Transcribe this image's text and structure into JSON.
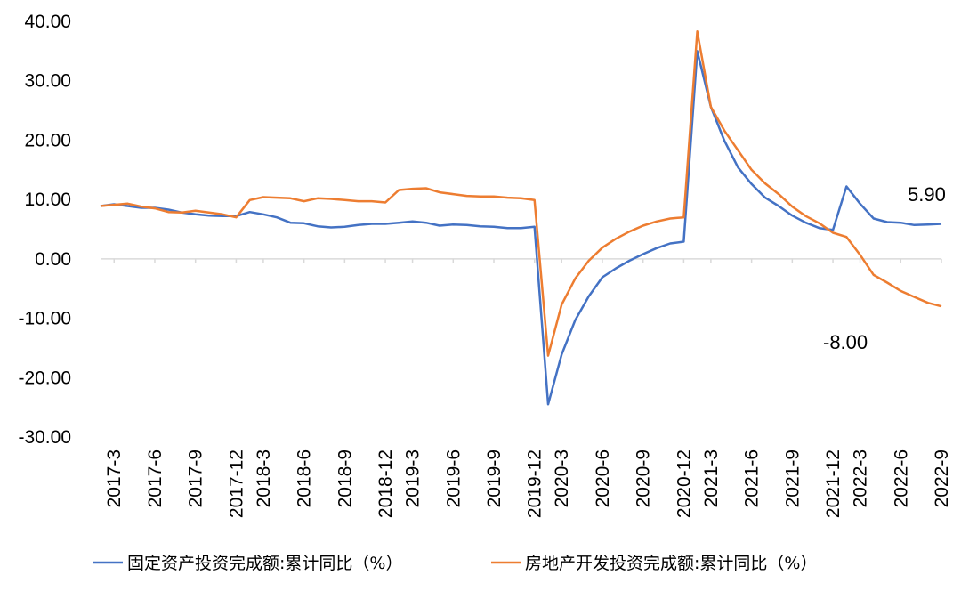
{
  "chart_data": {
    "type": "line",
    "title": "",
    "xlabel": "",
    "ylabel": "",
    "ylim": [
      -30,
      40
    ],
    "y_ticks": [
      "40.00",
      "30.00",
      "20.00",
      "10.00",
      "0.00",
      "-10.00",
      "-20.00",
      "-30.00"
    ],
    "y_tick_values": [
      40,
      30,
      20,
      10,
      0,
      -10,
      -20,
      -30
    ],
    "x_tick_labels": [
      "2017-3",
      "2017-6",
      "2017-9",
      "2017-12",
      "2018-3",
      "2018-6",
      "2018-9",
      "2018-12",
      "2019-3",
      "2019-6",
      "2019-9",
      "2019-12",
      "2020-3",
      "2020-6",
      "2020-9",
      "2020-12",
      "2021-3",
      "2021-6",
      "2021-9",
      "2021-12",
      "2022-3",
      "2022-6",
      "2022-9"
    ],
    "x": [
      "2017-2",
      "2017-3",
      "2017-4",
      "2017-5",
      "2017-6",
      "2017-7",
      "2017-8",
      "2017-9",
      "2017-10",
      "2017-11",
      "2017-12",
      "2018-2",
      "2018-3",
      "2018-4",
      "2018-5",
      "2018-6",
      "2018-7",
      "2018-8",
      "2018-9",
      "2018-10",
      "2018-11",
      "2018-12",
      "2019-2",
      "2019-3",
      "2019-4",
      "2019-5",
      "2019-6",
      "2019-7",
      "2019-8",
      "2019-9",
      "2019-10",
      "2019-11",
      "2019-12",
      "2020-2",
      "2020-3",
      "2020-4",
      "2020-5",
      "2020-6",
      "2020-7",
      "2020-8",
      "2020-9",
      "2020-10",
      "2020-11",
      "2020-12",
      "2021-2",
      "2021-3",
      "2021-4",
      "2021-5",
      "2021-6",
      "2021-7",
      "2021-8",
      "2021-9",
      "2021-10",
      "2021-11",
      "2021-12",
      "2022-2",
      "2022-3",
      "2022-4",
      "2022-5",
      "2022-6",
      "2022-7",
      "2022-8",
      "2022-9"
    ],
    "series": [
      {
        "name": "固定资产投资完成额:累计同比（%）",
        "color": "#4472C4",
        "values": [
          8.9,
          9.2,
          8.9,
          8.6,
          8.6,
          8.3,
          7.8,
          7.5,
          7.3,
          7.2,
          7.2,
          7.9,
          7.5,
          7.0,
          6.1,
          6.0,
          5.5,
          5.3,
          5.4,
          5.7,
          5.9,
          5.9,
          6.1,
          6.3,
          6.1,
          5.6,
          5.8,
          5.7,
          5.5,
          5.4,
          5.2,
          5.2,
          5.4,
          -24.5,
          -16.1,
          -10.3,
          -6.3,
          -3.1,
          -1.6,
          -0.3,
          0.8,
          1.8,
          2.6,
          2.9,
          35.0,
          25.6,
          19.9,
          15.4,
          12.6,
          10.3,
          8.9,
          7.3,
          6.1,
          5.2,
          4.9,
          12.2,
          9.3,
          6.8,
          6.2,
          6.1,
          5.7,
          5.8,
          5.9
        ]
      },
      {
        "name": "房地产开发投资完成额:累计同比（%）",
        "color": "#ED7D31",
        "values": [
          8.9,
          9.1,
          9.3,
          8.8,
          8.5,
          7.9,
          7.8,
          8.1,
          7.8,
          7.5,
          7.0,
          9.9,
          10.4,
          10.3,
          10.2,
          9.7,
          10.2,
          10.1,
          9.9,
          9.7,
          9.7,
          9.5,
          11.6,
          11.8,
          11.9,
          11.2,
          10.9,
          10.6,
          10.5,
          10.5,
          10.3,
          10.2,
          9.9,
          -16.3,
          -7.7,
          -3.3,
          -0.3,
          1.9,
          3.4,
          4.6,
          5.6,
          6.3,
          6.8,
          7.0,
          38.3,
          25.6,
          21.6,
          18.3,
          15.0,
          12.7,
          10.9,
          8.8,
          7.2,
          6.0,
          4.4,
          3.7,
          0.7,
          -2.7,
          -4.0,
          -5.4,
          -6.4,
          -7.4,
          -8.0
        ]
      }
    ],
    "annotations": [
      {
        "text": "5.90",
        "series": 0
      },
      {
        "text": "-8.00",
        "series": 1
      }
    ],
    "grid": false,
    "legend_position": "bottom"
  }
}
